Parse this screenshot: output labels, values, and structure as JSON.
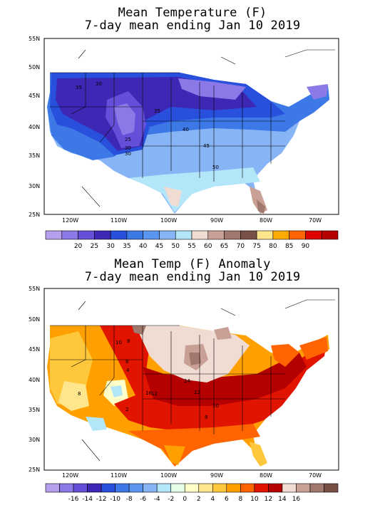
{
  "panels": [
    {
      "title_line1": "Mean Temperature (F)",
      "title_line2": "7-day mean ending Jan 10 2019",
      "lat_labels": [
        "55N",
        "50N",
        "45N",
        "40N",
        "35N",
        "30N",
        "25N"
      ],
      "lon_labels": [
        "120W",
        "110W",
        "100W",
        "90W",
        "80W",
        "70W"
      ],
      "contour_labels": [
        "35",
        "30",
        "30",
        "35",
        "40",
        "45",
        "50",
        "25",
        "30"
      ],
      "legend": {
        "colors": [
          "#b4a0ec",
          "#8c78e6",
          "#6450d8",
          "#3c28b4",
          "#2850dc",
          "#3c78e6",
          "#5a96f0",
          "#87b4f5",
          "#b4e6fa",
          "#f0dcd2",
          "#c8a096",
          "#a0786e",
          "#785046",
          "#ffe68c",
          "#ffaa00",
          "#ff6400",
          "#dc0000",
          "#b40000"
        ],
        "labels": [
          "20",
          "25",
          "30",
          "35",
          "40",
          "45",
          "50",
          "55",
          "60",
          "65",
          "70",
          "75",
          "80",
          "85",
          "90"
        ]
      }
    },
    {
      "title_line1": "Mean Temp (F) Anomaly",
      "title_line2": "7-day mean ending Jan 10 2019",
      "lat_labels": [
        "55N",
        "50N",
        "45N",
        "40N",
        "35N",
        "30N",
        "25N"
      ],
      "lon_labels": [
        "120W",
        "110W",
        "100W",
        "90W",
        "80W",
        "70W"
      ],
      "contour_labels": [
        "10",
        "8",
        "8",
        "4",
        "8",
        "16",
        "12",
        "14",
        "12",
        "10",
        "8",
        "2"
      ],
      "legend": {
        "colors": [
          "#b4a0ec",
          "#8c78e6",
          "#6450d8",
          "#3c28b4",
          "#2850dc",
          "#3c78e6",
          "#5a96f0",
          "#87b4f5",
          "#b4e6fa",
          "#e6ffe6",
          "#ffffc8",
          "#ffe68c",
          "#ffc83c",
          "#ffa000",
          "#ff6400",
          "#e11400",
          "#b40000",
          "#f0dcd2",
          "#c8a096",
          "#a0786e",
          "#785046"
        ],
        "labels": [
          "-16",
          "-14",
          "-12",
          "-10",
          "-8",
          "-6",
          "-4",
          "-2",
          "0",
          "2",
          "4",
          "6",
          "8",
          "10",
          "12",
          "14",
          "16"
        ]
      }
    }
  ]
}
